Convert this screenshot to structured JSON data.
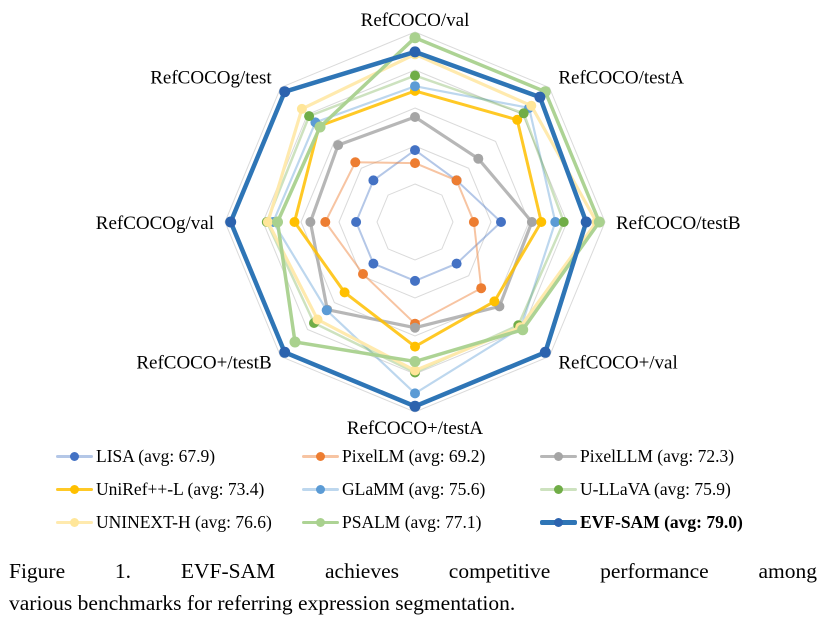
{
  "figure": {
    "caption_line1": "Figure 1. EVF-SAM achieves competitive performance among",
    "caption_line2": "various benchmarks for referring expression segmentation."
  },
  "chart_data": {
    "type": "radar",
    "title": "",
    "axes": [
      "RefCOCO/val",
      "RefCOCO/testA",
      "RefCOCO/testB",
      "RefCOCO+/val",
      "RefCOCO+/testA",
      "RefCOCO+/testB",
      "RefCOCOg/val",
      "RefCOCOg/test"
    ],
    "normalization": "per-axis min-max, radius fraction 0.31 to 0.97",
    "grid": {
      "rings": 5,
      "color": "#dadada",
      "spokes": false
    },
    "series": [
      {
        "name": "LISA",
        "label": "LISA (avg: 67.9)",
        "avg": 67.9,
        "color": "#4472c4",
        "line_color": "rgba(68,114,196,0.40)",
        "line_width": 2,
        "marker": 5,
        "bold": false,
        "values": [
          74.1,
          76.5,
          71.1,
          62.4,
          67.4,
          56.5,
          66.4,
          68.5
        ]
      },
      {
        "name": "PixelLM",
        "label": "PixelLM (avg: 69.2)",
        "avg": 69.2,
        "color": "#ed7d31",
        "line_color": "rgba(237,125,49,0.45)",
        "line_width": 2,
        "marker": 5,
        "bold": false,
        "values": [
          73.0,
          76.5,
          68.2,
          66.3,
          71.7,
          58.3,
          69.3,
          70.5
        ]
      },
      {
        "name": "PixelLLM",
        "label": "PixelLLM (avg: 72.3)",
        "avg": 72.3,
        "color": "#a5a5a5",
        "line_color": "rgba(165,165,165,0.80)",
        "line_width": 3.2,
        "marker": 5,
        "bold": false,
        "values": [
          76.9,
          78.5,
          74.4,
          69.2,
          72.1,
          64.5,
          70.7,
          72.4
        ]
      },
      {
        "name": "UniRef++-L",
        "label": "UniRef++-L (avg: 73.4)",
        "avg": 73.4,
        "color": "#ffc000",
        "line_color": "rgba(255,192,0,0.85)",
        "line_width": 3,
        "marker": 5,
        "bold": false,
        "values": [
          79.1,
          82.1,
          75.4,
          68.4,
          74.0,
          61.5,
          72.2,
          74.5
        ]
      },
      {
        "name": "GLaMM",
        "label": "GLaMM (avg: 75.6)",
        "avg": 75.6,
        "color": "#5b9bd5",
        "line_color": "rgba(91,155,213,0.40)",
        "line_width": 2.2,
        "marker": 5,
        "bold": false,
        "values": [
          79.5,
          83.2,
          76.9,
          72.6,
          78.7,
          64.6,
          74.2,
          74.9
        ]
      },
      {
        "name": "U-LLaVA",
        "label": "U-LLaVA (avg: 75.9)",
        "avg": 75.9,
        "color": "#70ad47",
        "line_color": "rgba(112,173,71,0.35)",
        "line_width": 2.5,
        "marker": 5,
        "bold": false,
        "values": [
          80.4,
          82.7,
          77.8,
          72.2,
          76.6,
          66.8,
          74.8,
          75.6
        ]
      },
      {
        "name": "UNINEXT-H",
        "label": "UNINEXT-H (avg: 76.6)",
        "avg": 76.6,
        "color": "#ffe699",
        "line_color": "rgba(255,233,170,0.95)",
        "line_width": 3.2,
        "marker": 5,
        "bold": false,
        "values": [
          82.2,
          83.4,
          81.3,
          72.5,
          76.4,
          66.2,
          74.7,
          76.4
        ]
      },
      {
        "name": "PSALM",
        "label": "PSALM (avg: 77.1)",
        "avg": 77.1,
        "color": "#a9d18e",
        "line_color": "rgba(169,209,142,0.95)",
        "line_width": 3.5,
        "marker": 5.5,
        "bold": false,
        "values": [
          83.6,
          84.7,
          81.6,
          72.9,
          75.5,
          70.1,
          73.8,
          74.4
        ]
      },
      {
        "name": "EVF-SAM",
        "label": "EVF-SAM (avg: 79.0)",
        "avg": 79.0,
        "color": "#2c63ae",
        "line_color": "#2e75b6",
        "line_width": 4.5,
        "marker": 5.5,
        "bold": true,
        "values": [
          82.4,
          84.2,
          80.2,
          76.5,
          80.0,
          71.9,
          78.2,
          78.3
        ]
      }
    ]
  }
}
